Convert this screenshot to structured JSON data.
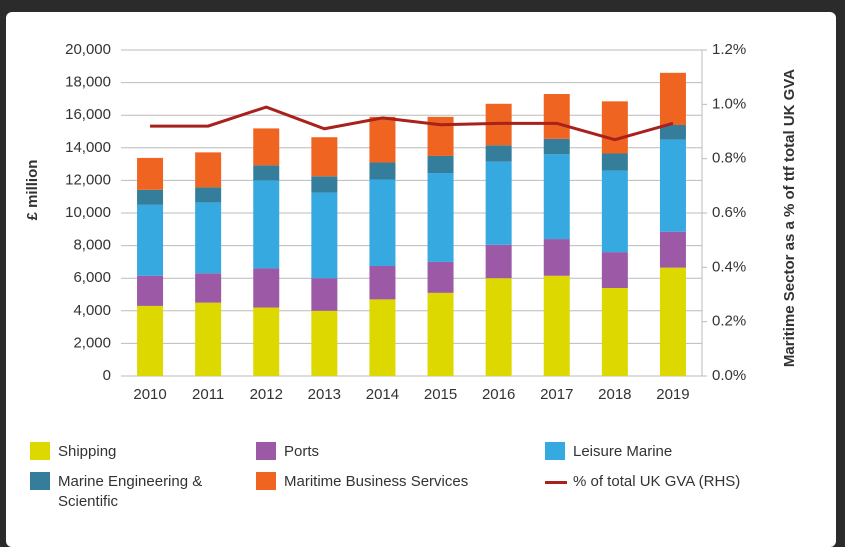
{
  "chart_data": {
    "type": "bar",
    "stacked": true,
    "y_label": "£ million",
    "y2_label": "Maritime Sector as a % of ttf total UK GVA",
    "categories": [
      "2010",
      "2011",
      "2012",
      "2013",
      "2014",
      "2015",
      "2016",
      "2017",
      "2018",
      "2019"
    ],
    "series": [
      {
        "name": "Shipping",
        "color": "#dcd800",
        "values": [
          4300,
          4500,
          4200,
          4000,
          4700,
          5100,
          6000,
          6150,
          5400,
          6650
        ]
      },
      {
        "name": "Ports",
        "color": "#9b59a6",
        "values": [
          1850,
          1800,
          2400,
          2000,
          2050,
          1900,
          2050,
          2250,
          2200,
          2200
        ]
      },
      {
        "name": "Leisure Marine",
        "color": "#35a9e0",
        "values": [
          4350,
          4350,
          5400,
          5250,
          5300,
          5450,
          5100,
          5200,
          5000,
          5650
        ]
      },
      {
        "name": "Marine Engineering & Scientific",
        "color": "#347e9c",
        "values": [
          920,
          920,
          920,
          1000,
          1050,
          1050,
          1000,
          950,
          1050,
          900
        ]
      },
      {
        "name": "Maritime Business Services",
        "color": "#ef6420",
        "values": [
          1960,
          2150,
          2270,
          2400,
          2800,
          2400,
          2550,
          2750,
          3200,
          3200
        ]
      },
      {
        "name": "% of total UK GVA (RHS)",
        "color": "#a8211d",
        "type": "line",
        "axis": "y2",
        "values": [
          0.92,
          0.92,
          0.99,
          0.91,
          0.95,
          0.925,
          0.93,
          0.93,
          0.87,
          0.93
        ]
      }
    ],
    "ylim": [
      0,
      20000
    ],
    "yticks": [
      0,
      {
        "value": 2000,
        "label": "2,000"
      },
      {
        "value": 4000,
        "label": "4,000"
      },
      {
        "value": 6000,
        "label": "6,000"
      },
      {
        "value": 8000,
        "label": "8,000"
      },
      {
        "value": 10000,
        "label": "10,000"
      },
      {
        "value": 12000,
        "label": "12,000"
      },
      {
        "value": 14000,
        "label": "14,000"
      },
      {
        "value": 16000,
        "label": "16,000"
      },
      {
        "value": 18000,
        "label": "18,000"
      },
      {
        "value": 20000,
        "label": "20,000"
      }
    ],
    "y2lim": [
      0,
      1.2
    ],
    "y2ticks": [
      {
        "value": 0,
        "label": "0.0%"
      },
      {
        "value": 0.2,
        "label": "0.2%"
      },
      {
        "value": 0.4,
        "label": "0.4%"
      },
      {
        "value": 0.6,
        "label": "0.6%"
      },
      {
        "value": 0.8,
        "label": "0.8%"
      },
      {
        "value": 1.0,
        "label": "1.0%"
      },
      {
        "value": 1.2,
        "label": "1.2%"
      }
    ],
    "grid": true
  }
}
